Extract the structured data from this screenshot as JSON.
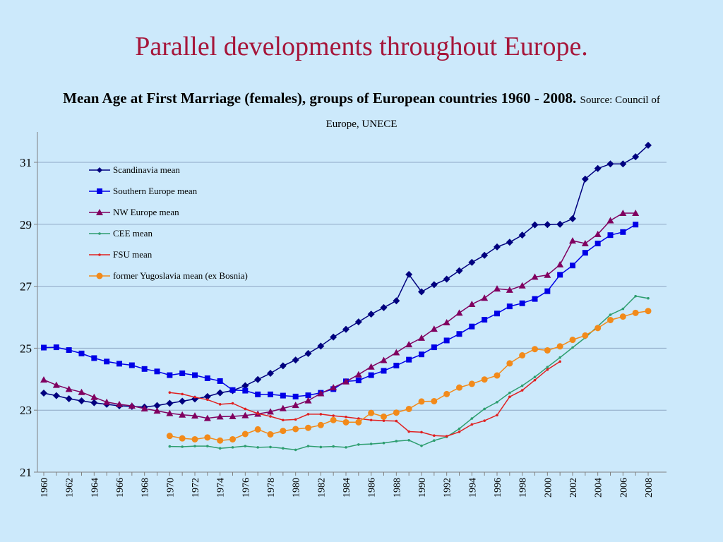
{
  "slide_title": "Parallel developments throughout Europe.",
  "chart_title_main": "Mean Age at First Marriage (females), groups of European countries 1960 - 2008.",
  "chart_title_source": "Source: Council of Europe, UNECE",
  "chart_data": {
    "type": "line",
    "title": "Mean Age at First Marriage (females), groups of European countries 1960 - 2008.",
    "subtitle": "Source: Council of Europe, UNECE",
    "xlabel": "",
    "ylabel": "",
    "xlim": [
      1960,
      2008
    ],
    "ylim": [
      21,
      32
    ],
    "yticks": [
      21,
      23,
      25,
      27,
      29,
      31
    ],
    "xticks": [
      1960,
      1962,
      1964,
      1966,
      1968,
      1970,
      1972,
      1974,
      1976,
      1978,
      1980,
      1982,
      1984,
      1986,
      1988,
      1990,
      1992,
      1994,
      1996,
      1998,
      2000,
      2002,
      2004,
      2006,
      2008
    ],
    "grid": "horizontal",
    "legend_position": "top-left",
    "series": [
      {
        "name": "Scandinavia mean",
        "color": "#00007f",
        "marker": "diamond",
        "x": [
          1960,
          1961,
          1962,
          1963,
          1964,
          1965,
          1966,
          1967,
          1968,
          1969,
          1970,
          1971,
          1972,
          1973,
          1974,
          1975,
          1976,
          1977,
          1978,
          1979,
          1980,
          1981,
          1982,
          1983,
          1984,
          1985,
          1986,
          1987,
          1988,
          1989,
          1990,
          1991,
          1992,
          1993,
          1994,
          1995,
          1996,
          1997,
          1998,
          1999,
          2000,
          2001,
          2002,
          2003,
          2004,
          2005,
          2006,
          2007,
          2008
        ],
        "values": [
          23.55,
          23.47,
          23.37,
          23.3,
          23.24,
          23.19,
          23.14,
          23.12,
          23.1,
          23.15,
          23.22,
          23.29,
          23.36,
          23.44,
          23.56,
          23.63,
          23.79,
          23.99,
          24.19,
          24.43,
          24.62,
          24.83,
          25.07,
          25.36,
          25.61,
          25.85,
          26.1,
          26.31,
          26.53,
          27.38,
          26.82,
          27.05,
          27.23,
          27.5,
          27.77,
          28.0,
          28.27,
          28.42,
          28.65,
          28.98,
          28.99,
          29.0,
          29.18,
          30.46,
          30.8,
          30.95,
          30.95,
          31.18,
          31.55
        ]
      },
      {
        "name": "Southern Europe mean",
        "color": "#0000e6",
        "marker": "square",
        "x": [
          1960,
          1961,
          1962,
          1963,
          1964,
          1965,
          1966,
          1967,
          1968,
          1969,
          1970,
          1971,
          1972,
          1973,
          1974,
          1975,
          1976,
          1977,
          1978,
          1979,
          1980,
          1981,
          1982,
          1983,
          1984,
          1985,
          1986,
          1987,
          1988,
          1989,
          1990,
          1991,
          1992,
          1993,
          1994,
          1995,
          1996,
          1997,
          1998,
          1999,
          2000,
          2001,
          2002,
          2003,
          2004,
          2005,
          2006,
          2007
        ],
        "values": [
          25.02,
          25.03,
          24.94,
          24.83,
          24.68,
          24.57,
          24.5,
          24.45,
          24.33,
          24.25,
          24.13,
          24.19,
          24.13,
          24.03,
          23.94,
          23.65,
          23.63,
          23.51,
          23.51,
          23.47,
          23.44,
          23.48,
          23.56,
          23.68,
          23.93,
          23.96,
          24.13,
          24.27,
          24.44,
          24.63,
          24.8,
          25.03,
          25.25,
          25.46,
          25.7,
          25.92,
          26.12,
          26.35,
          26.45,
          26.59,
          26.84,
          27.37,
          27.67,
          28.08,
          28.38,
          28.65,
          28.75,
          28.99
        ]
      },
      {
        "name": "NW Europe mean",
        "color": "#800060",
        "marker": "triangle",
        "x": [
          1960,
          1961,
          1962,
          1963,
          1964,
          1965,
          1966,
          1967,
          1968,
          1969,
          1970,
          1971,
          1972,
          1973,
          1974,
          1975,
          1976,
          1977,
          1978,
          1979,
          1980,
          1981,
          1982,
          1983,
          1984,
          1985,
          1986,
          1987,
          1988,
          1989,
          1990,
          1991,
          1992,
          1993,
          1994,
          1995,
          1996,
          1997,
          1998,
          1999,
          2000,
          2001,
          2002,
          2003,
          2004,
          2005,
          2006,
          2007
        ],
        "values": [
          23.98,
          23.81,
          23.68,
          23.58,
          23.42,
          23.26,
          23.19,
          23.14,
          23.05,
          22.98,
          22.9,
          22.85,
          22.82,
          22.74,
          22.79,
          22.8,
          22.83,
          22.88,
          22.95,
          23.06,
          23.16,
          23.31,
          23.54,
          23.73,
          23.92,
          24.15,
          24.4,
          24.61,
          24.86,
          25.12,
          25.33,
          25.62,
          25.83,
          26.14,
          26.42,
          26.62,
          26.92,
          26.88,
          27.02,
          27.3,
          27.36,
          27.7,
          28.47,
          28.38,
          28.68,
          29.12,
          29.36,
          29.36
        ]
      },
      {
        "name": "CEE mean",
        "color": "#2e9e70",
        "marker": "dot",
        "x": [
          1970,
          1971,
          1972,
          1973,
          1974,
          1975,
          1976,
          1977,
          1978,
          1979,
          1980,
          1981,
          1982,
          1983,
          1984,
          1985,
          1986,
          1987,
          1988,
          1989,
          1990,
          1991,
          1992,
          1993,
          1994,
          1995,
          1996,
          1997,
          1998,
          1999,
          2000,
          2001,
          2002,
          2003,
          2004,
          2005,
          2006,
          2007,
          2008
        ],
        "values": [
          21.83,
          21.82,
          21.84,
          21.84,
          21.77,
          21.8,
          21.84,
          21.8,
          21.81,
          21.77,
          21.72,
          21.84,
          21.81,
          21.83,
          21.8,
          21.89,
          21.91,
          21.94,
          22.0,
          22.03,
          21.85,
          22.02,
          22.14,
          22.4,
          22.73,
          23.04,
          23.26,
          23.56,
          23.79,
          24.07,
          24.39,
          24.7,
          25.02,
          25.34,
          25.71,
          26.08,
          26.27,
          26.68,
          26.61
        ]
      },
      {
        "name": "FSU mean",
        "color": "#e02020",
        "marker": "dot",
        "x": [
          1970,
          1971,
          1972,
          1973,
          1974,
          1975,
          1976,
          1977,
          1978,
          1979,
          1980,
          1981,
          1982,
          1983,
          1984,
          1985,
          1986,
          1987,
          1988,
          1989,
          1990,
          1991,
          1992,
          1993,
          1994,
          1995,
          1996,
          1997,
          1998,
          1999,
          2000,
          2001
        ],
        "values": [
          23.57,
          23.52,
          23.42,
          23.34,
          23.19,
          23.22,
          23.04,
          22.89,
          22.8,
          22.68,
          22.7,
          22.87,
          22.87,
          22.82,
          22.78,
          22.73,
          22.68,
          22.66,
          22.65,
          22.31,
          22.29,
          22.18,
          22.16,
          22.3,
          22.54,
          22.66,
          22.84,
          23.43,
          23.64,
          23.97,
          24.31,
          24.57
        ]
      },
      {
        "name": "former Yugoslavia mean (ex Bosnia)",
        "color": "#f28a1a",
        "marker": "circle",
        "x": [
          1970,
          1971,
          1972,
          1973,
          1974,
          1975,
          1976,
          1977,
          1978,
          1979,
          1980,
          1981,
          1982,
          1983,
          1984,
          1985,
          1986,
          1987,
          1988,
          1989,
          1990,
          1991,
          1992,
          1993,
          1994,
          1995,
          1996,
          1997,
          1998,
          1999,
          2000,
          2001,
          2002,
          2003,
          2004,
          2005,
          2006,
          2007,
          2008
        ],
        "values": [
          22.17,
          22.09,
          22.06,
          22.12,
          22.02,
          22.06,
          22.23,
          22.38,
          22.22,
          22.33,
          22.39,
          22.43,
          22.52,
          22.68,
          22.61,
          22.61,
          22.91,
          22.79,
          22.92,
          23.04,
          23.28,
          23.29,
          23.52,
          23.73,
          23.85,
          23.99,
          24.12,
          24.51,
          24.77,
          24.97,
          24.93,
          25.06,
          25.27,
          25.41,
          25.65,
          25.91,
          26.02,
          26.14,
          26.2
        ]
      }
    ]
  }
}
